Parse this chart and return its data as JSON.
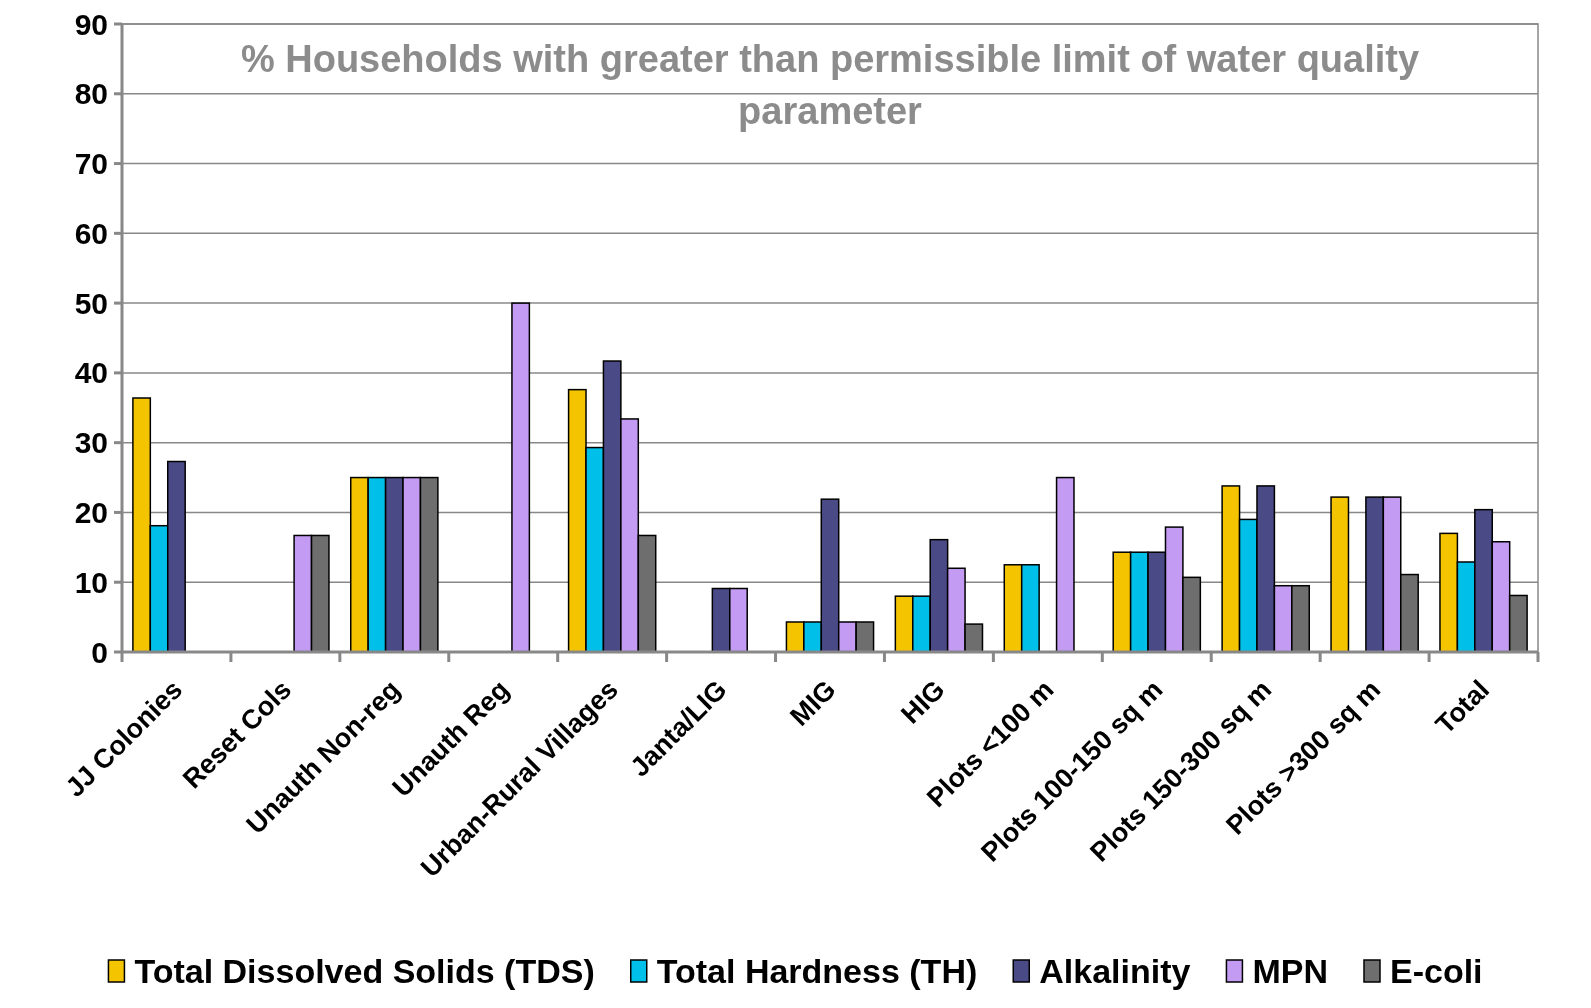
{
  "chart_data": {
    "type": "bar",
    "title": "% Households with greater than permissible limit of water quality parameter",
    "categories": [
      "JJ Colonies",
      "Reset Cols",
      "Unauth Non-reg",
      "Unauth Reg",
      "Urban-Rural Villages",
      "Janta/LIG",
      "MIG",
      "HIG",
      "Plots <100 m",
      "Plots 100-150 sq m",
      "Plots 150-300 sq m",
      "Plots >300 sq m",
      "Total"
    ],
    "series": [
      {
        "name": "Total Dissolved Solids (TDS)",
        "color": "#f5c400",
        "values": [
          36.4,
          null,
          25,
          null,
          37.6,
          null,
          4.3,
          8,
          12.5,
          14.3,
          23.8,
          22.2,
          17
        ]
      },
      {
        "name": "Total Hardness (TH)",
        "color": "#00bfe8",
        "values": [
          18.1,
          null,
          25,
          null,
          29.3,
          null,
          4.3,
          8,
          12.5,
          14.3,
          19,
          null,
          12.9
        ]
      },
      {
        "name": "Alkalinity",
        "color": "#4a4a86",
        "values": [
          27.3,
          null,
          25,
          null,
          41.7,
          9.1,
          21.9,
          16.1,
          null,
          14.3,
          23.8,
          22.2,
          20.4
        ]
      },
      {
        "name": "MPN",
        "color": "#c39bf2",
        "values": [
          null,
          16.7,
          25,
          50,
          33.4,
          9.1,
          4.3,
          12,
          25,
          17.9,
          9.5,
          22.2,
          15.8
        ]
      },
      {
        "name": "E-coli",
        "color": "#6e6e6e",
        "values": [
          null,
          16.7,
          25,
          null,
          16.7,
          null,
          4.3,
          4,
          null,
          10.7,
          9.5,
          11.1,
          8.1
        ]
      }
    ],
    "ylim": [
      0,
      90
    ],
    "yticks": [
      0,
      10,
      20,
      30,
      40,
      50,
      60,
      70,
      80,
      90
    ],
    "grid": "y",
    "legend": "bottom"
  }
}
